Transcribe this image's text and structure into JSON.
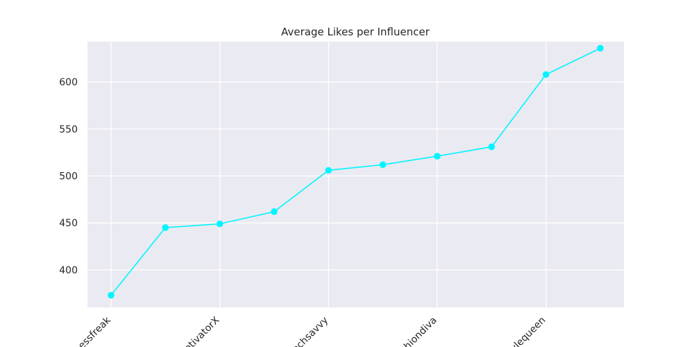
{
  "chart_data": {
    "type": "line",
    "title": "Average Likes per Influencer",
    "xlabel": "",
    "ylabel": "",
    "ylim": [
      360,
      643
    ],
    "yticks": [
      400,
      450,
      500,
      550,
      600
    ],
    "grid": true,
    "legend": "none",
    "x_tick_labels": [
      "fitnessfreak",
      "motivatorX",
      "techsavvy",
      "fashiondiva",
      "stylequeen"
    ],
    "x_tick_indices": [
      0,
      2,
      4,
      6,
      8
    ],
    "series": [
      {
        "color": "#00f5ff",
        "values": [
          373,
          445,
          449,
          462,
          506,
          512,
          521,
          531,
          608,
          636
        ]
      }
    ],
    "colors": {
      "plot_background": "#eaeaf2",
      "grid": "#ffffff",
      "text": "#262626"
    }
  }
}
